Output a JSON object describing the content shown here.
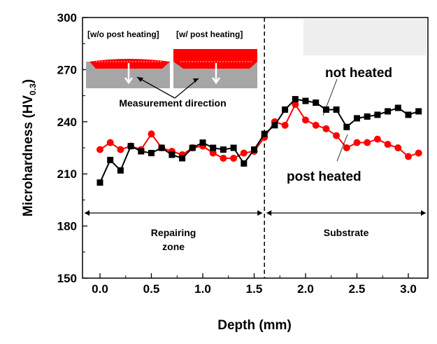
{
  "chart_data": {
    "type": "line",
    "xlabel": "Depth (mm)",
    "ylabel": "Microhardness (HV",
    "ylabel_sub": "0.3",
    "ylabel_close": ")",
    "xlim": [
      -0.15,
      3.2
    ],
    "ylim": [
      150,
      300
    ],
    "xticks": [
      0.0,
      0.5,
      1.0,
      1.5,
      2.0,
      2.5,
      3.0
    ],
    "xtick_labels": [
      "0.0",
      "0.5",
      "1.0",
      "1.5",
      "2.0",
      "2.5",
      "3.0"
    ],
    "yticks": [
      150,
      180,
      210,
      240,
      270,
      300
    ],
    "ytick_labels": [
      "150",
      "180",
      "210",
      "240",
      "270",
      "300"
    ],
    "x": [
      0.0,
      0.1,
      0.2,
      0.3,
      0.4,
      0.5,
      0.6,
      0.7,
      0.8,
      0.9,
      1.0,
      1.1,
      1.2,
      1.3,
      1.4,
      1.5,
      1.6,
      1.7,
      1.8,
      1.9,
      2.0,
      2.1,
      2.2,
      2.3,
      2.4,
      2.5,
      2.6,
      2.7,
      2.8,
      2.9,
      3.0,
      3.1
    ],
    "series": [
      {
        "name": "not heated",
        "color": "#000000",
        "marker": "square",
        "values": [
          205,
          218,
          212,
          226,
          223,
          222,
          225,
          221,
          219,
          225,
          228,
          225,
          224,
          225,
          216,
          224,
          233,
          238,
          247,
          253,
          252,
          251,
          247,
          247,
          237,
          242,
          243,
          244,
          246,
          248,
          244,
          246
        ]
      },
      {
        "name": "post heated",
        "color": "#ff0000",
        "marker": "circle",
        "values": [
          224,
          228,
          224,
          226,
          224,
          233,
          225,
          223,
          221,
          225,
          226,
          222,
          219,
          219,
          222,
          223,
          231,
          240,
          238,
          250,
          241,
          238,
          236,
          232,
          225,
          228,
          228,
          230,
          227,
          225,
          220,
          222
        ]
      }
    ],
    "boundary_x": 1.6,
    "regions": [
      {
        "label_line1": "Repairing",
        "label_line2": "zone",
        "from": -0.15,
        "to": 1.6
      },
      {
        "label_line1": "Substrate",
        "label_line2": "",
        "from": 1.6,
        "to": 3.2
      }
    ],
    "grid": false,
    "legend": "inline annotations"
  },
  "inset": {
    "left_label": "[w/o post heating]",
    "right_label": "[w/ post heating]",
    "caption": "Measurement direction"
  }
}
